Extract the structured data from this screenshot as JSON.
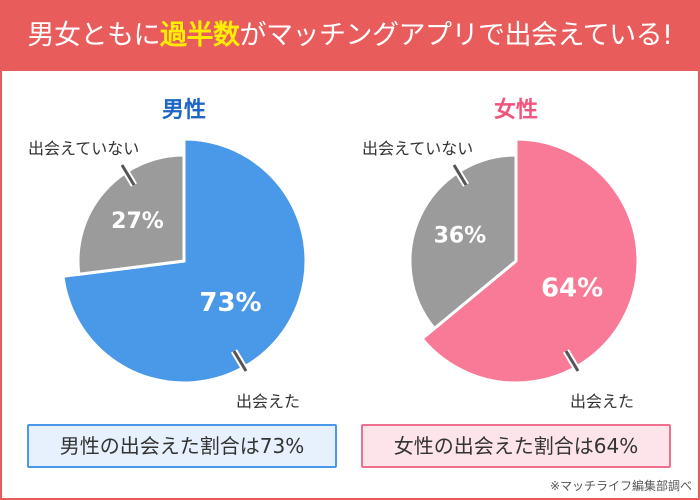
{
  "header": {
    "title_pre": "男女ともに",
    "title_highlight": "過半数",
    "title_post": "がマッチングアプリで出会えている!"
  },
  "colors": {
    "header": "#e85c5c",
    "highlight": "#ffee00",
    "male": "#4a98e8",
    "female": "#f87a96",
    "gray": "#9b9b9b"
  },
  "chart_data": [
    {
      "type": "pie",
      "title": "男性",
      "slices": [
        {
          "label": "出会えた",
          "value": 73,
          "text": "73%"
        },
        {
          "label": "出会えていない",
          "value": 27,
          "text": "27%"
        }
      ]
    },
    {
      "type": "pie",
      "title": "女性",
      "slices": [
        {
          "label": "出会えた",
          "value": 64,
          "text": "64%"
        },
        {
          "label": "出会えていない",
          "value": 36,
          "text": "36%"
        }
      ]
    }
  ],
  "summary": {
    "male": "男性の出会えた割合は73%",
    "female": "女性の出会えた割合は64%"
  },
  "footnote": "※マッチライフ編集部調べ"
}
